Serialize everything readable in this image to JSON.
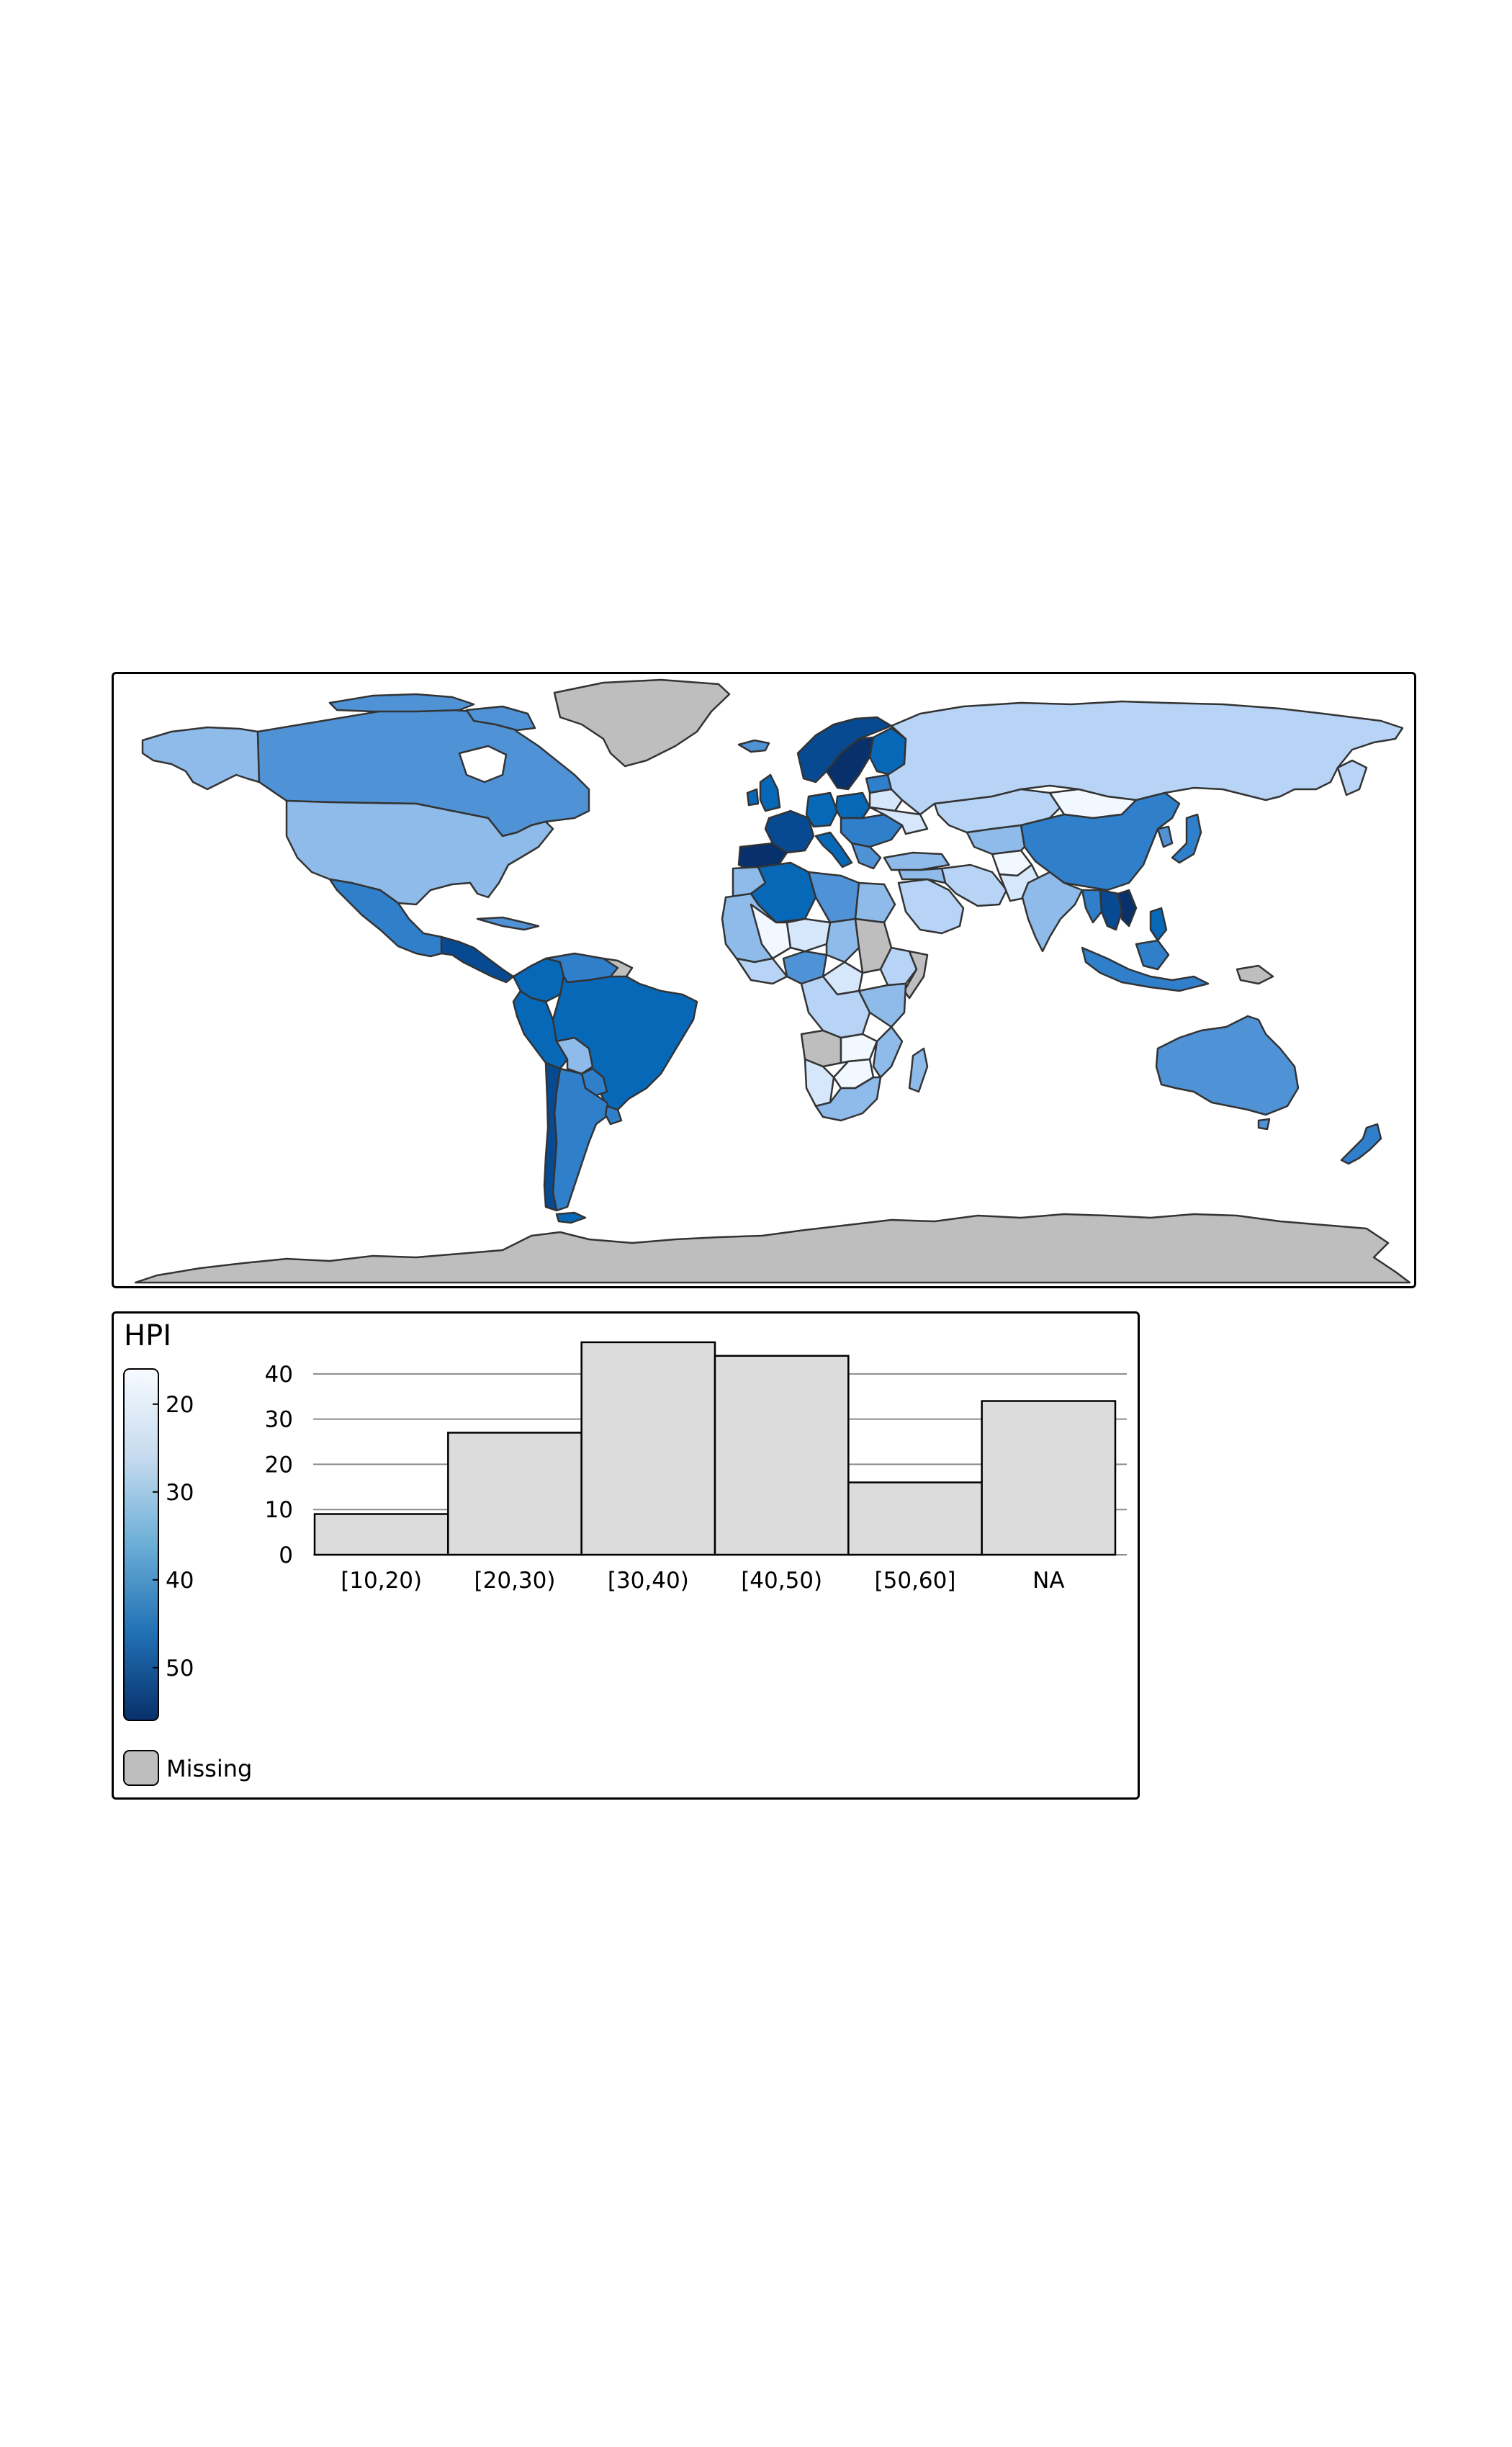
{
  "map": {
    "colors": {
      "ocean": "#ffffff",
      "border": "#333333",
      "missing": "#bebebe",
      "v55": "#08306b",
      "v50": "#084a91",
      "v45": "#0868b8",
      "v40": "#2f7fcb",
      "v35": "#4f92d6",
      "v30": "#8ebbe9",
      "v25": "#b7d3f5",
      "v20": "#d6e6fb",
      "v15": "#f2f8ff"
    }
  },
  "legend": {
    "title": "HPI",
    "gradient_ticks": [
      "20",
      "30",
      "40",
      "50"
    ],
    "gradient_range": [
      16,
      56
    ],
    "gradient_stops": [
      "#f7fbff",
      "#c6dbef",
      "#6baed6",
      "#2171b5",
      "#08306b"
    ],
    "missing_label": "Missing",
    "missing_color": "#bebebe"
  },
  "chart_data": {
    "type": "bar",
    "categories": [
      "[10,20)",
      "[20,30)",
      "[30,40)",
      "[40,50)",
      "[50,60]",
      "NA"
    ],
    "values": [
      9,
      27,
      47,
      44,
      16,
      34
    ],
    "ylim": [
      0,
      50
    ],
    "yticks": [
      0,
      10,
      20,
      30,
      40
    ],
    "bar_color": "#dcdcdc",
    "grid": true
  }
}
